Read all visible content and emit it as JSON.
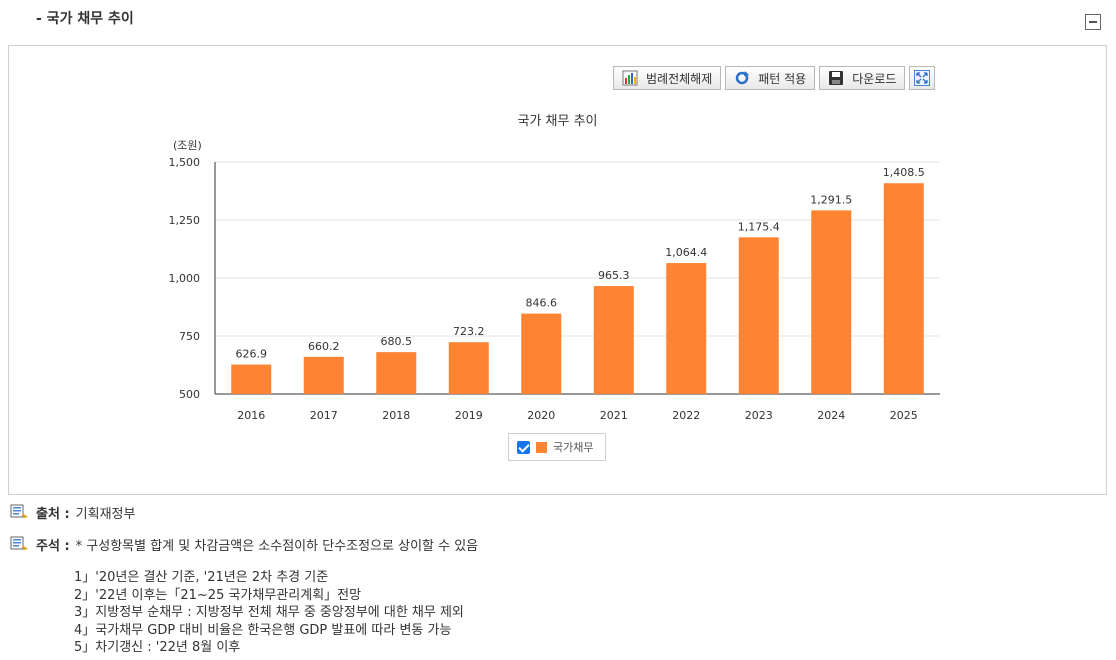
{
  "section": {
    "title": "- 국가 채무 추이"
  },
  "toolbar": {
    "legend_toggle_label": "범례전체해제",
    "pattern_label": "패턴 적용",
    "download_label": "다운로드"
  },
  "chart_data": {
    "type": "bar",
    "title": "국가 채무 추이",
    "unit_label": "(조원)",
    "categories": [
      "2016",
      "2017",
      "2018",
      "2019",
      "2020",
      "2021",
      "2022",
      "2023",
      "2024",
      "2025"
    ],
    "series": [
      {
        "name": "국가채무",
        "values": [
          626.9,
          660.2,
          680.5,
          723.2,
          846.6,
          965.3,
          1064.4,
          1175.4,
          1291.5,
          1408.5
        ],
        "color": "#fe8333"
      }
    ],
    "data_labels": [
      "626.9",
      "660.2",
      "680.5",
      "723.2",
      "846.6",
      "965.3",
      "1,064.4",
      "1,175.4",
      "1,291.5",
      "1,408.5"
    ],
    "ylim": [
      500,
      1500
    ],
    "yticks": [
      500,
      750,
      1000,
      1250,
      1500
    ],
    "ytick_labels": [
      "500",
      "750",
      "1,000",
      "1,250",
      "1,500"
    ],
    "grid": true,
    "legend_position": "bottom-center"
  },
  "legend": {
    "label": "국가채무"
  },
  "notes": {
    "source_label": "출처 :",
    "source_value": "기획재정부",
    "remark_label": "주석 :",
    "remark_value": "* 구성항목별 합계 및 차감금액은 소수점이하 단수조정으로 상이할 수 있음",
    "footnotes": [
      "1」'20년은 결산 기준, '21년은 2차 추경 기준",
      "2」'22년 이후는「21~25 국가채무관리계획」전망",
      "3」지방정부 순채무 : 지방정부 전체 채무 중 중앙정부에 대한 채무 제외",
      "4」국가채무 GDP 대비 비율은 한국은행 GDP 발표에 따라 변동 가능",
      "5」차기갱신 : '22년 8월 이후"
    ]
  }
}
